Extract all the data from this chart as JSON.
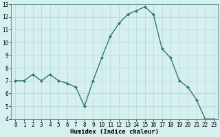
{
  "x": [
    0,
    1,
    2,
    3,
    4,
    5,
    6,
    7,
    8,
    9,
    10,
    11,
    12,
    13,
    14,
    15,
    16,
    17,
    18,
    19,
    20,
    21,
    22,
    23
  ],
  "y": [
    7.0,
    7.0,
    7.5,
    7.0,
    7.5,
    7.0,
    6.8,
    6.5,
    5.0,
    7.0,
    8.8,
    10.5,
    11.5,
    12.2,
    12.5,
    12.8,
    12.2,
    9.5,
    8.8,
    7.0,
    6.5,
    5.5,
    4.0,
    4.0
  ],
  "line_color": "#2d7a6e",
  "marker": "D",
  "marker_size": 2.0,
  "bg_color": "#d6f0ef",
  "grid_color": "#b8dbd8",
  "xlabel": "Humidex (Indice chaleur)",
  "xlim": [
    -0.5,
    23.5
  ],
  "ylim": [
    4,
    13
  ],
  "yticks": [
    4,
    5,
    6,
    7,
    8,
    9,
    10,
    11,
    12,
    13
  ],
  "xticks": [
    0,
    1,
    2,
    3,
    4,
    5,
    6,
    7,
    8,
    9,
    10,
    11,
    12,
    13,
    14,
    15,
    16,
    17,
    18,
    19,
    20,
    21,
    22,
    23
  ],
  "xlabel_fontsize": 6.5,
  "tick_fontsize": 5.5,
  "line_width": 1.0
}
